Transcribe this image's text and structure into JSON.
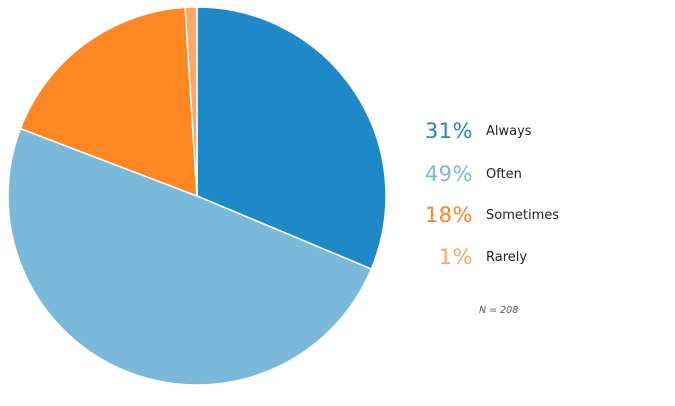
{
  "chart_data": {
    "type": "pie",
    "categories": [
      "Always",
      "Often",
      "Sometimes",
      "Rarely"
    ],
    "values": [
      31,
      49,
      18,
      1
    ],
    "percent_labels": [
      "31%",
      "49%",
      "18%",
      "1%"
    ],
    "colors": [
      "#1f88c9",
      "#7bb9db",
      "#fe8623",
      "#fea866"
    ],
    "start_angle_deg": 0,
    "direction": "clockwise",
    "legend_placement": "right",
    "note": "N = 208"
  }
}
